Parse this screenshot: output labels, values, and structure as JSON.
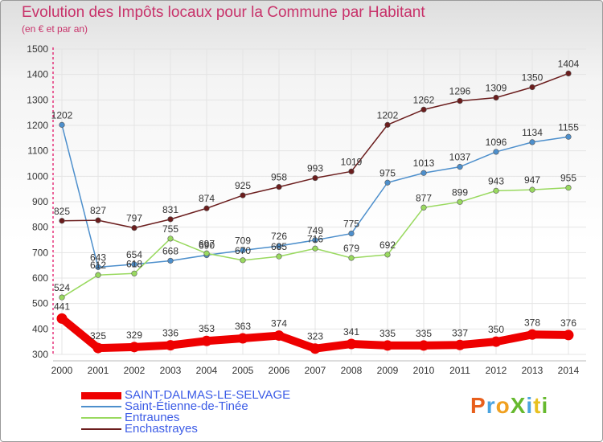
{
  "header": {
    "title": "Evolution des Impôts locaux pour la Commune par Habitant",
    "subtitle": "(en € et par an)"
  },
  "logo": {
    "text": "ProXiti"
  },
  "chart_data": {
    "type": "line",
    "title": "Evolution des Impôts locaux pour la Commune par Habitant",
    "subtitle": "(en € et par an)",
    "x": [
      "2000",
      "2001",
      "2002",
      "2003",
      "2004",
      "2005",
      "2006",
      "2007",
      "2008",
      "2009",
      "2010",
      "2011",
      "2012",
      "2013",
      "2014"
    ],
    "ylim": [
      300,
      1500
    ],
    "yticks": [
      300,
      400,
      500,
      600,
      700,
      800,
      900,
      1000,
      1100,
      1200,
      1300,
      1400,
      1500
    ],
    "grid": true,
    "legend_position": "bottom-left",
    "series": [
      {
        "name": "SAINT-DALMAS-LE-SELVAGE",
        "color": "#ee0000",
        "emphasis": true,
        "values": [
          441,
          325,
          329,
          336,
          353,
          363,
          374,
          323,
          341,
          335,
          335,
          337,
          350,
          378,
          376
        ]
      },
      {
        "name": "Saint-Étienne-de-Tinée",
        "color": "#4d8fcc",
        "values": [
          1202,
          643,
          654,
          668,
          690,
          709,
          726,
          749,
          775,
          975,
          1013,
          1037,
          1096,
          1134,
          1155
        ]
      },
      {
        "name": "Entraunes",
        "color": "#99d95f",
        "values": [
          524,
          612,
          618,
          755,
          697,
          670,
          685,
          716,
          679,
          692,
          877,
          899,
          943,
          947,
          955
        ]
      },
      {
        "name": "Enchastrayes",
        "color": "#6b1d1d",
        "values": [
          825,
          827,
          797,
          831,
          874,
          925,
          958,
          993,
          1019,
          1202,
          1262,
          1296,
          1309,
          1350,
          1404
        ]
      }
    ]
  }
}
